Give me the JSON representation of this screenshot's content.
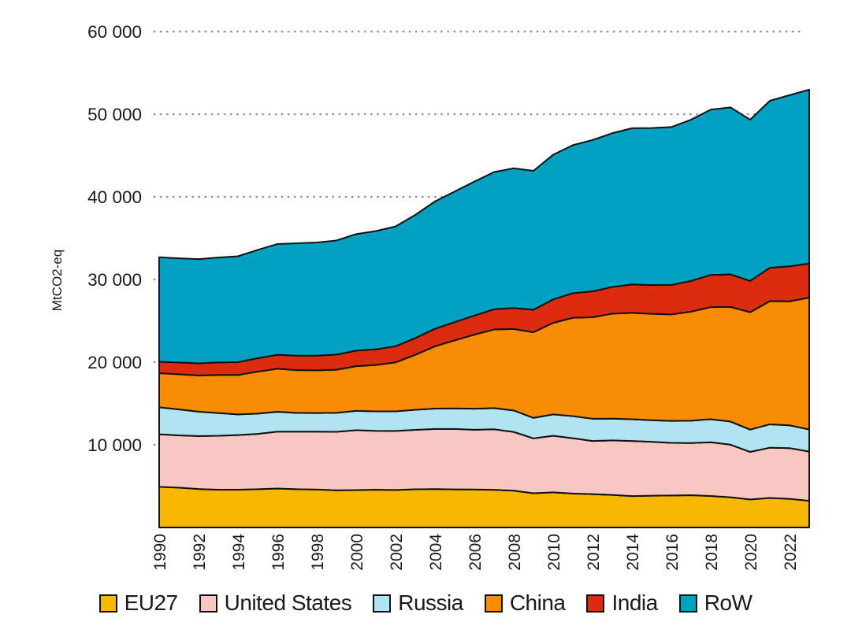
{
  "chart_data": {
    "type": "area",
    "stacked": true,
    "title": "",
    "xlabel": "",
    "ylabel": "MtCO2-eq",
    "unit": "MtCO2-eq",
    "grid": "horizontal-dotted",
    "legend_position": "bottom",
    "ylim": [
      0,
      60000
    ],
    "y_ticks": [
      10000,
      20000,
      30000,
      40000,
      50000,
      60000
    ],
    "y_tick_labels": [
      "10 000",
      "20 000",
      "30 000",
      "40 000",
      "50 000",
      "60 000"
    ],
    "x_tick_step": 2,
    "x": [
      1990,
      1991,
      1992,
      1993,
      1994,
      1995,
      1996,
      1997,
      1998,
      1999,
      2000,
      2001,
      2002,
      2003,
      2004,
      2005,
      2006,
      2007,
      2008,
      2009,
      2010,
      2011,
      2012,
      2013,
      2014,
      2015,
      2016,
      2017,
      2018,
      2019,
      2020,
      2021,
      2022,
      2023
    ],
    "series": [
      {
        "name": "EU27",
        "color": "#F8B700",
        "values": [
          4915,
          4820,
          4650,
          4570,
          4570,
          4630,
          4720,
          4630,
          4590,
          4500,
          4520,
          4570,
          4540,
          4620,
          4640,
          4610,
          4600,
          4560,
          4450,
          4140,
          4250,
          4110,
          4030,
          3940,
          3800,
          3850,
          3870,
          3900,
          3810,
          3650,
          3390,
          3570,
          3470,
          3222
        ]
      },
      {
        "name": "United States",
        "color": "#F9C7C1",
        "values": [
          6355,
          6320,
          6410,
          6520,
          6610,
          6690,
          6880,
          6960,
          7000,
          7070,
          7250,
          7120,
          7140,
          7190,
          7280,
          7310,
          7220,
          7320,
          7110,
          6640,
          6850,
          6690,
          6430,
          6600,
          6660,
          6520,
          6370,
          6320,
          6500,
          6370,
          5750,
          6080,
          6130,
          5961
        ]
      },
      {
        "name": "Russia",
        "color": "#AFE4F0",
        "values": [
          3269,
          3150,
          2950,
          2750,
          2500,
          2450,
          2400,
          2270,
          2250,
          2300,
          2340,
          2360,
          2370,
          2430,
          2460,
          2480,
          2550,
          2560,
          2600,
          2480,
          2580,
          2670,
          2690,
          2630,
          2640,
          2610,
          2650,
          2700,
          2790,
          2800,
          2700,
          2830,
          2760,
          2672
        ]
      },
      {
        "name": "China",
        "color": "#F88C04",
        "values": [
          4127,
          4250,
          4380,
          4610,
          4770,
          5080,
          5200,
          5180,
          5170,
          5210,
          5400,
          5600,
          5920,
          6650,
          7540,
          8240,
          8960,
          9520,
          9850,
          10360,
          11070,
          11900,
          12280,
          12700,
          12870,
          12860,
          12880,
          13190,
          13560,
          13860,
          14200,
          14900,
          15000,
          15944
        ]
      },
      {
        "name": "India",
        "color": "#DC2C10",
        "values": [
          1377,
          1420,
          1470,
          1510,
          1560,
          1630,
          1690,
          1740,
          1770,
          1840,
          1880,
          1910,
          1950,
          2020,
          2120,
          2200,
          2310,
          2440,
          2540,
          2720,
          2840,
          2980,
          3140,
          3230,
          3430,
          3480,
          3570,
          3720,
          3890,
          3940,
          3790,
          4040,
          4240,
          4134
        ]
      },
      {
        "name": "RoW",
        "color": "#00A1C1",
        "values": [
          12650,
          12600,
          12600,
          12700,
          12800,
          13100,
          13400,
          13600,
          13700,
          13800,
          14100,
          14300,
          14500,
          14900,
          15400,
          15800,
          16200,
          16600,
          16900,
          16800,
          17500,
          17900,
          18300,
          18600,
          18900,
          19000,
          19100,
          19500,
          20000,
          20200,
          19500,
          20200,
          20700,
          21029
        ]
      }
    ]
  },
  "style_tokens": {
    "outline_color": "#111111",
    "gridline_color": "#8c8c8c",
    "tick_label_color": "#1a1a1a"
  }
}
